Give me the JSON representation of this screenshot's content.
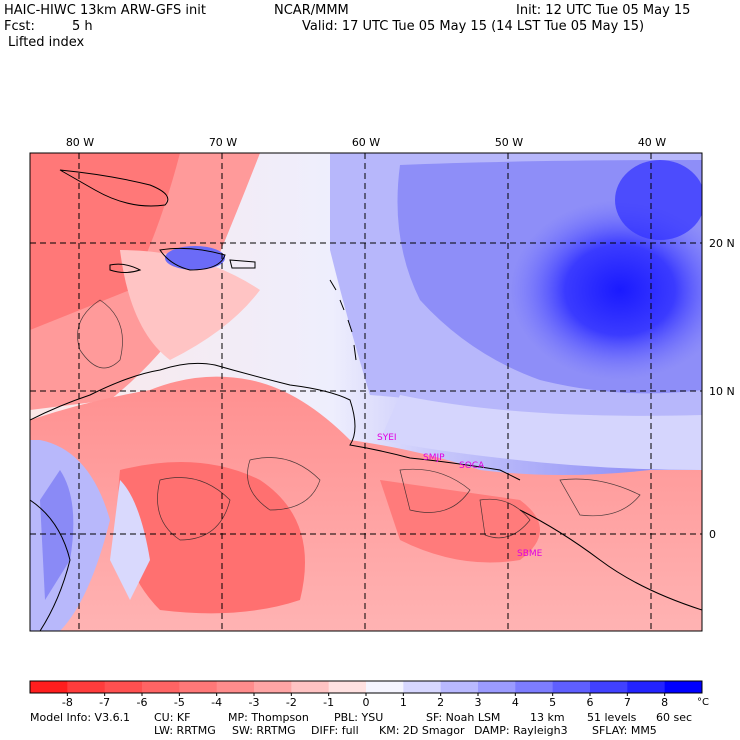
{
  "header": {
    "model_line": "HAIC-HIWC 13km ARW-GFS init",
    "org": "NCAR/MMM",
    "init": "Init: 12 UTC Tue 05 May 15",
    "fcst_label": "Fcst:",
    "fcst_value": "5 h",
    "valid": "Valid: 17 UTC Tue 05 May 15 (14 LST Tue 05 May 15)",
    "field": "Lifted index"
  },
  "map": {
    "lon_labels": [
      "80 W",
      "70 W",
      "60 W",
      "50 W",
      "40 W"
    ],
    "lat_labels": [
      "20 N",
      "10 N",
      "0"
    ],
    "stations": [
      "SYEI",
      "SMJP",
      "SOCA",
      "SBME"
    ]
  },
  "colorbar": {
    "ticks": [
      "-8",
      "-7",
      "-6",
      "-5",
      "-4",
      "-3",
      "-2",
      "-1",
      "0",
      "1",
      "2",
      "3",
      "4",
      "5",
      "6",
      "7",
      "8"
    ],
    "unit": "°C",
    "colors": [
      "#ff1e1e",
      "#ff3c3c",
      "#ff5050",
      "#ff6464",
      "#ff7878",
      "#ff8c8c",
      "#ffa5a5",
      "#ffc3c3",
      "#ffe1e1",
      "#f5f5ff",
      "#d7d7ff",
      "#b9b9ff",
      "#9b9bff",
      "#7d7dff",
      "#5f5fff",
      "#4141ff",
      "#2323ff",
      "#0000ff"
    ]
  },
  "footer": {
    "line1": [
      "Model Info: V3.6.1",
      "CU: KF",
      "MP: Thompson",
      "PBL: YSU",
      "SF: Noah LSM",
      "13 km",
      "51 levels",
      "60 sec"
    ],
    "line2": [
      "LW: RRTMG",
      "SW: RRTMG",
      "DIFF: full",
      "KM: 2D Smagor",
      "DAMP: Rayleigh3",
      "SFLAY: MM5"
    ]
  }
}
